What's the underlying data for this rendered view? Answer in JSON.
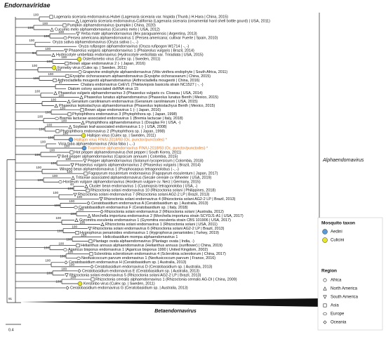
{
  "family": "Endornaviridae",
  "clades": {
    "alpha": "Alphaendornavirus",
    "beta": "Betaendornavirus"
  },
  "scale": "0.4",
  "root_support": "91",
  "legend": {
    "taxon_title": "Mosquito taxon",
    "taxa": [
      {
        "name": "Aedini",
        "color": "#5b9bd5"
      },
      {
        "name": "Culicini",
        "color": "#e6e62a"
      }
    ],
    "region_title": "Region",
    "regions": [
      "Africa",
      "North America",
      "South America",
      "Asia",
      "Europe",
      "Oceania"
    ]
  },
  "leaves": [
    {
      "label": "Lagenaria siceraria endornavirus-Hubei (Lagenaria siceraria var. hispida (Thunb.) H.Hara | China, 2015)",
      "region": "Asia",
      "support": "100"
    },
    {
      "label": "Lagenaria siceraria endornavirus-California (Lagenaria siceraria (ornamental hard shell bottle gourd) | USA, 2011)",
      "region": "North America"
    },
    {
      "label": "Pumpkin alphaendornavirus (pumpkin | China, 2020)",
      "region": "Asia",
      "support": "100"
    },
    {
      "label": "Cucumis melo alphaendornavirus (Cucumis melo | USA, 2012)",
      "region": "North America",
      "support": "100"
    },
    {
      "label": "Yerba mate alphaendornavirus (Ilex paraguariensis | Argentina, 2013)",
      "region": "South America",
      "support": "100"
    },
    {
      "label": "Persea americana alphaendornavirus 1 (Persea americana; cultivar Fuerte | Spain, 2010)",
      "region": "Europe",
      "support": "100"
    },
    {
      "label": "Oryza sativa alphaendornavirus (Oryza sativa | -, -)",
      "support": "100"
    },
    {
      "label": "Oryza rufipogon alphaendornavirus (Oryza rufipogon W1714 | -, -)"
    },
    {
      "label": "Phaseolus vulgaris alphaendornavirus 1 (Phaseolus vulgaris | Brazil, 2014)",
      "region": "South America",
      "support": "100"
    },
    {
      "label": "Hydrocotyle umbellata endornavirus (Hydrocotyle verticillata var. Triradiata | USA, 2015)",
      "region": "North America",
      "support": "94"
    },
    {
      "label": "Osterfarnebo virus (Culex sp. | Sweden, 2011)",
      "taxon": "Culicini",
      "support": "100"
    },
    {
      "label": "Brown algae endornavirus 2 (- | Japan, 2016)",
      "region": "Asia",
      "support": "100"
    },
    {
      "label": "Forneby virus (Culex sp. | Sweden, 2011)",
      "taxon": "Culicini",
      "support": "100"
    },
    {
      "label": "Grapevine endophyte alphaendornavirus (Vitis vinifera endophyte | South Africa, 2011)",
      "region": "Africa",
      "support": "100"
    },
    {
      "label": "Erysiphe cichoracearum alphaendornavirus (Erysiphe cichoracearum | China, 2015)",
      "region": "Asia",
      "support": "100"
    },
    {
      "label": "Arthrocladiella mougeotii alphaendornavirus (Arthrocladiella mougeotii | China, 2016)",
      "region": "Asia",
      "support": "100"
    },
    {
      "label": "Chalara endornavirus CeEV1 (Thielaviopsis basicola strain NC1527 | -, -)",
      "support": "67"
    },
    {
      "label": "Diatom colony associated dsRNA virus 15"
    },
    {
      "label": "Phaseolus vulgaris alphaendornavirus 3 (Phaseolus vulgaris cv. Closeau | USA, 2014)",
      "region": "North America",
      "support": "100"
    },
    {
      "label": "Phaseolus lunatus alphaendornavirus (Phaseolus lunatus Benth | Mexico, 2015)",
      "region": "North America",
      "support": "100"
    },
    {
      "label": "Geranium carolinianum endornavirus (Geranium carolinianum | USA, 2015)",
      "region": "North America",
      "support": "100"
    },
    {
      "label": "Phaseolus leptostachyus alphaendornavirus (Phaseolus leptostachyus Benth | Mexico, 2015)",
      "region": "North America"
    },
    {
      "label": "Brown algae endornavirus 1 (- | Japan, 2016)",
      "region": "Asia",
      "support": "100"
    },
    {
      "label": "Phytophthora endornavirus 3 (Phytophthora sp. | Japan, 1998)",
      "region": "Asia",
      "support": "100"
    },
    {
      "label": "Bremia lactucae associated endornavirus 1 (Bremia lactucae | Italy, 2018)",
      "region": "Europe",
      "support": "100"
    },
    {
      "label": "Phytophthora alphaendornavirus 1 (Douglas Fir | USA, -)",
      "region": "North America",
      "support": "100"
    },
    {
      "label": "Soybean leaf-associated endornavirus 1 (- | USA, 2008)",
      "region": "North America",
      "support": "100"
    },
    {
      "label": "Phytophthora endornavirus 2 (Phytophthora sp. | Japan, 1998)",
      "region": "Asia",
      "support": "100"
    },
    {
      "label": "Hallsjon virus (Culex sp. | Sweden, 2011)",
      "taxon": "Culicini",
      "support": "100"
    },
    {
      "label": "Hallsjon virus FIN/U-2018/93 (Oc. punctor/punctodes) *",
      "taxon": "Aedini",
      "novel": true,
      "support": "100"
    },
    {
      "label": "Vicia faba alphaendornavirus (Vicia faba | -, -)",
      "support": "100"
    },
    {
      "label": "Tvarminne alphaendornavirus FIN/U-2018/93 (Oc. punctor/punctodes) *",
      "taxon": "Aedini",
      "novel": true,
      "support": "100"
    },
    {
      "label": "Hot pepper alphaendornavirus (hot pepper | South Korea, 2011)",
      "region": "Asia",
      "support": "100"
    },
    {
      "label": "Bell pepper alphaendornavirus (Capsicum annuum | Colombia, 2015)",
      "region": "South America",
      "support": "100"
    },
    {
      "label": "Pepper alphaendornavirus (Solanum lycopersicum | Colombia, 2018)",
      "region": "South America",
      "support": "100"
    },
    {
      "label": "Phaseolus vulgaris alphaendornavirus 2 (Phaseolus vulgaris | Brazil, 2014)",
      "region": "South America",
      "support": "100"
    },
    {
      "label": "Winged bean alphaendornavirus 1 (Psophocarpus tetragonolobus | -, -)",
      "support": "100"
    },
    {
      "label": "Fagopyrum esculentum endornavirus (Fagopyrum esculentum | Japan, 2017)",
      "region": "Asia",
      "support": "100"
    },
    {
      "label": "Triticeae associated alphaendornavirus (Secale cereale cv Wheeler | USA, 2019)",
      "region": "North America",
      "support": "100"
    },
    {
      "label": "Hordeum vulgare alphaendornavirus (Hordeum vulgare cv. Nerz | Germany, 2015)",
      "region": "Europe",
      "support": "100"
    },
    {
      "label": "Cluster bean endornavirus 1 (Cyamopsis tetragonoloba | USA, -)",
      "region": "North America",
      "support": "44"
    },
    {
      "label": "Rhizoctonia solani endornavirus 10 (Rhizoctonia solani | Philippines, 2018)",
      "region": "Asia",
      "support": "100"
    },
    {
      "label": "Rhizoctonia solani endornavirus 7 (Rhizoctonia solani AG2-2 LP | Brazil, 2013)",
      "region": "South America",
      "support": "100"
    },
    {
      "label": "Rhizoctonia solani endornavirus 4 (Rhizoctonia solani AG2-2 LP | Brazil, 2013)",
      "region": "South America",
      "support": "100"
    },
    {
      "label": "Ceratobasidium endornavirus A (Ceratobasidium sp. | Australia, 2013)",
      "region": "Oceania",
      "support": "100"
    },
    {
      "label": "Ceratobasidium endornavirus F (Ceratobasidium sp. | Italy, 2018)",
      "region": "Europe",
      "support": "100"
    },
    {
      "label": "Rhizoctonia solani endornavirus 2 (Rhizoctonia solani | Australia, 2012)",
      "region": "Oceania",
      "support": "100"
    },
    {
      "label": "Morchella importuna endornavirus 2 (Morchella importuna strain SCYDJ1-A1 | USA, 2017)",
      "region": "North America",
      "support": "100"
    },
    {
      "label": "Gyromitra esculenta endornavirus 1 (Gyromitra esculenta strain CBS 101906 | USA, 2017)",
      "region": "North America",
      "support": "100"
    },
    {
      "label": "Rhizoctonia solani endornavirus 1 (Rhizoctonia solani | USA, 2011)",
      "region": "North America",
      "support": "100"
    },
    {
      "label": "Rhizoctonia solani endornavirus 6 (Rhizoctonia solani AG2-2 LP | Brazil, 2013)",
      "region": "South America",
      "support": "100"
    },
    {
      "label": "Hygrophorus penarioides endornavirus 1 (Hygrophorus penarioides | Turkey, 2019)",
      "region": "Asia",
      "support": "100"
    },
    {
      "label": "Helicobasidium mompa alphaendornavirus 1",
      "support": "100"
    },
    {
      "label": "Plantago ovata alphaendornavirus (Plantago ovata | India, -)",
      "region": "Asia",
      "support": "100"
    },
    {
      "label": "Helianthus annuus alphaendornavirus (Helianthus annuus (sunflower) | China, 2019)",
      "region": "Asia",
      "support": "100"
    },
    {
      "label": "Agaricus bisporus endornavirus 1 (Agaricus bisporus 1990 | United Kingdom, 2002)",
      "region": "Europe",
      "support": "100"
    },
    {
      "label": "Sclerotinia sclerotiorum endornavirus 4 (Sclerotinia sclerotiorum | China, 2017)",
      "region": "Asia",
      "support": "100"
    },
    {
      "label": "Neofusicoccum parvum endornavirus 1 (Neofusicoccum parvum | France, 2016)",
      "region": "Europe",
      "support": "100"
    },
    {
      "label": "Ceratobasidium endornavirus H (Ceratobasidium sp. | Australia, 2013)",
      "region": "Oceania",
      "support": "100"
    },
    {
      "label": "Ceratobasidium endornavirus D (Ceratobasidium sp. | Australia, 2013)",
      "region": "Oceania",
      "support": "100"
    },
    {
      "label": "Ceratobasidium endornavirus E (Ceratobasidium sp. | Australia, 2013)",
      "region": "Oceania",
      "support": "100"
    },
    {
      "label": "Rhizoctonia solani endornavirus 5 (Rhizoctonia solani AG2-2 LP | Brazil, 2013)",
      "region": "South America",
      "support": "100"
    },
    {
      "label": "Rhizoctonia cerealis alphaendornavirus 1 (Rhizoctonia cerealis AG-DI | China, 2009)",
      "region": "Asia",
      "support": "100"
    },
    {
      "label": "Kerstinbo virus (Culex sp. | Sweden, 2011)",
      "taxon": "Culicini",
      "support": "100"
    },
    {
      "label": "Ceratobasidium endornavirus G (Ceratobasidium sp. | Australia, 2013)",
      "region": "Oceania"
    }
  ]
}
